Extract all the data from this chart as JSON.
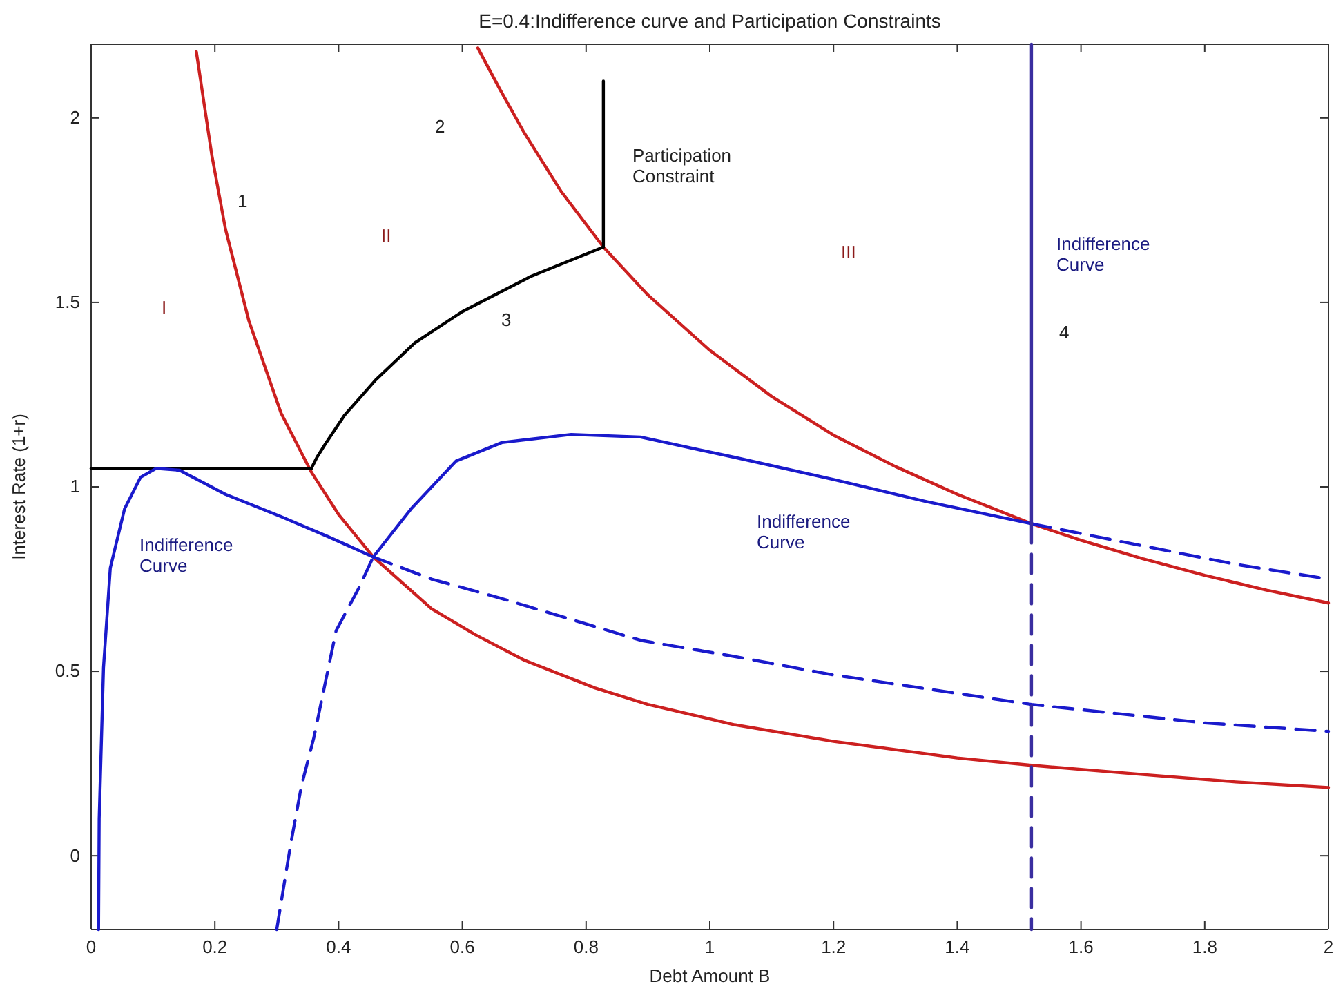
{
  "chart_data": {
    "type": "line",
    "title": "E=0.4:Indifference curve and Participation Constraints",
    "xlabel": "Debt Amount B",
    "ylabel": "Interest Rate (1+r)",
    "xlim": [
      0,
      2
    ],
    "xticks": [
      0,
      0.2,
      0.4,
      0.6,
      0.8,
      1,
      1.2,
      1.4,
      1.6,
      1.8,
      2
    ],
    "ylim": [
      -0.2,
      2.2
    ],
    "yticks": [
      0,
      0.5,
      1,
      1.5,
      2
    ],
    "series": [
      {
        "color": "#cc2020",
        "line_style": "solid",
        "x": [
          0.17,
          0.195,
          0.217,
          0.255,
          0.307,
          0.356,
          0.4,
          0.456,
          0.55,
          0.62,
          0.7,
          0.814,
          0.9,
          1.04,
          1.2,
          1.4,
          1.52,
          1.7,
          1.85,
          2
        ],
        "values": [
          2.18,
          1.9,
          1.7,
          1.45,
          1.2,
          1.04,
          0.925,
          0.81,
          0.67,
          0.6,
          0.53,
          0.455,
          0.41,
          0.355,
          0.31,
          0.265,
          0.245,
          0.22,
          0.2,
          0.185
        ]
      },
      {
        "color": "#cc2020",
        "line_style": "solid",
        "x": [
          0.625,
          0.66,
          0.7,
          0.76,
          0.828,
          0.9,
          1.0,
          1.1,
          1.2,
          1.3,
          1.4,
          1.52,
          1.6,
          1.7,
          1.8,
          1.9,
          2.0
        ],
        "values": [
          2.19,
          2.08,
          1.96,
          1.8,
          1.65,
          1.52,
          1.37,
          1.245,
          1.14,
          1.055,
          0.98,
          0.9,
          0.855,
          0.805,
          0.76,
          0.72,
          0.685
        ]
      },
      {
        "color": "#000000",
        "line_style": "solid",
        "x": [
          0,
          0.356
        ],
        "values": [
          1.05,
          1.05
        ]
      },
      {
        "color": "#000000",
        "line_style": "solid",
        "x": [
          0.356,
          0.365,
          0.38,
          0.41,
          0.46,
          0.523,
          0.6,
          0.71,
          0.828
        ],
        "values": [
          1.05,
          1.08,
          1.12,
          1.195,
          1.29,
          1.39,
          1.475,
          1.57,
          1.65
        ]
      },
      {
        "color": "#000000",
        "line_style": "solid",
        "x": [
          0.828,
          0.828
        ],
        "values": [
          1.65,
          2.1
        ]
      },
      {
        "color": "#1a1acc",
        "line_style": "solid",
        "x": [
          0.012,
          0.013,
          0.02,
          0.031,
          0.054,
          0.08,
          0.105,
          0.143,
          0.217,
          0.306,
          0.383,
          0.456
        ],
        "values": [
          -0.2,
          0.1,
          0.51,
          0.78,
          0.94,
          1.026,
          1.05,
          1.045,
          0.98,
          0.92,
          0.865,
          0.81
        ]
      },
      {
        "color": "#1a1acc",
        "line_style": "dashed",
        "x": [
          0.456,
          0.55,
          0.664,
          0.888,
          1.04,
          1.2,
          1.52,
          1.8,
          2
        ],
        "values": [
          0.81,
          0.75,
          0.697,
          0.584,
          0.54,
          0.49,
          0.41,
          0.36,
          0.337
        ]
      },
      {
        "color": "#1a1acc",
        "line_style": "dashed",
        "x": [
          0.3,
          0.322,
          0.34,
          0.36,
          0.396,
          0.434,
          0.456
        ],
        "values": [
          -0.2,
          0.026,
          0.19,
          0.32,
          0.61,
          0.73,
          0.81
        ]
      },
      {
        "color": "#1a1acc",
        "line_style": "solid",
        "x": [
          0.456,
          0.517,
          0.59,
          0.664,
          0.776,
          0.888,
          1.04,
          1.2,
          1.35,
          1.52
        ],
        "values": [
          0.81,
          0.94,
          1.07,
          1.12,
          1.142,
          1.135,
          1.08,
          1.02,
          0.96,
          0.9
        ]
      },
      {
        "color": "#1a1acc",
        "line_style": "dashed",
        "x": [
          1.52,
          1.7,
          1.85,
          2
        ],
        "values": [
          0.9,
          0.84,
          0.79,
          0.75
        ]
      },
      {
        "color": "#3a2ea0",
        "line_style": "solid",
        "x": [
          1.52,
          1.52
        ],
        "values": [
          2.2,
          0.9
        ]
      },
      {
        "color": "#3a2ea0",
        "line_style": "dashed",
        "x": [
          1.52,
          1.52
        ],
        "values": [
          0.9,
          -0.2
        ]
      }
    ],
    "annotations": [
      "1",
      "2",
      "3",
      "4",
      "I",
      "II",
      "III",
      "Participation\nConstraint",
      "Indifference\nCurve",
      "Indifference\nCurve",
      "Indifference\nCurve"
    ]
  }
}
